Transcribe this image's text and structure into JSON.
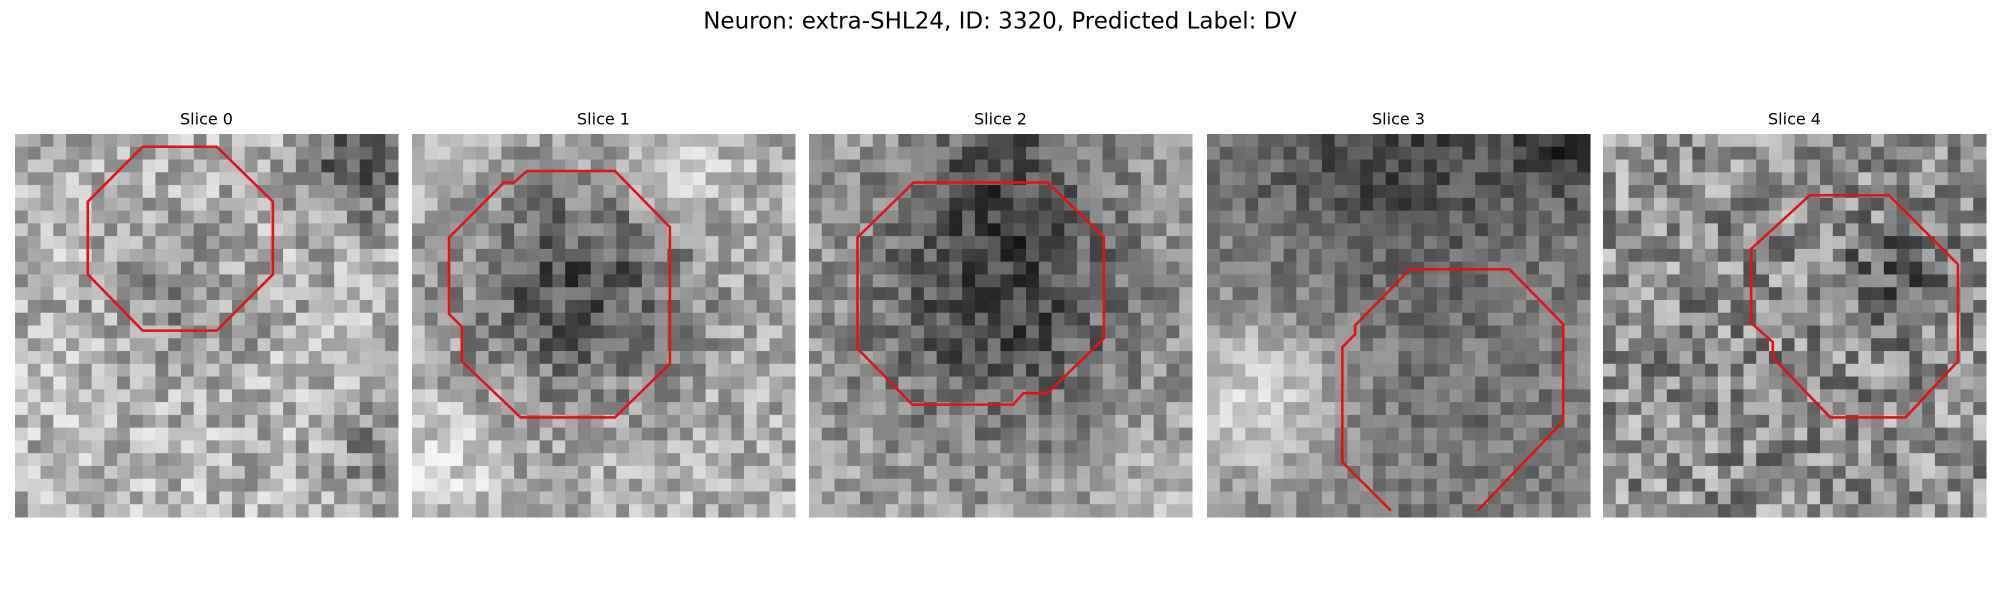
{
  "title": "Neuron: extra-SHL24, ID: 3320, Predicted Label: DV",
  "panels": [
    {
      "title": "Slice 0"
    },
    {
      "title": "Slice 1"
    },
    {
      "title": "Slice 2"
    },
    {
      "title": "Slice 3"
    },
    {
      "title": "Slice 4"
    }
  ]
}
